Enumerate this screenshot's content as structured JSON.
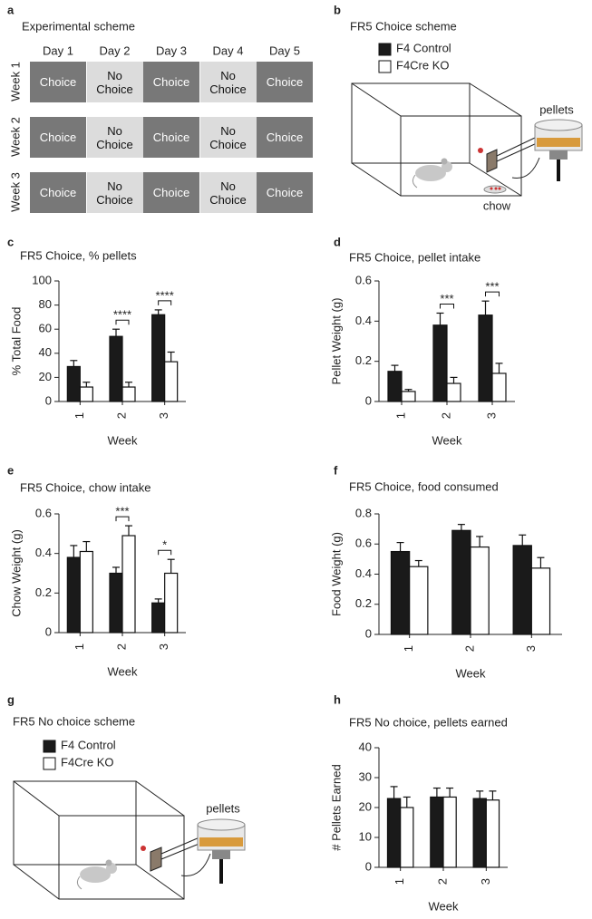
{
  "scheme": {
    "panel": "a",
    "title": "Experimental scheme",
    "days": [
      "Day 1",
      "Day 2",
      "Day 3",
      "Day 4",
      "Day 5"
    ],
    "weeks": [
      "Week 1",
      "Week 2",
      "Week 3"
    ],
    "rows": [
      [
        "Choice",
        "No Choice",
        "Choice",
        "No Choice",
        "Choice"
      ],
      [
        "Choice",
        "No Choice",
        "Choice",
        "No Choice",
        "Choice"
      ],
      [
        "Choice",
        "No Choice",
        "Choice",
        "No Choice",
        "Choice"
      ]
    ],
    "cell_colors": [
      "#787878",
      "#dcdcdc",
      "#787878",
      "#dcdcdc",
      "#787878"
    ],
    "text_colors": [
      "#ffffff",
      "#111111",
      "#ffffff",
      "#111111",
      "#ffffff"
    ]
  },
  "diagram_b": {
    "panel": "b",
    "title": "FR5 Choice scheme",
    "legend": [
      {
        "name": "F4 Control",
        "color": "#1a1a1a"
      },
      {
        "name": "F4Cre KO",
        "color": "#ffffff"
      }
    ],
    "pellets_label": "pellets",
    "chow_label": "chow"
  },
  "diagram_g": {
    "panel": "g",
    "title": "FR5 No choice scheme",
    "legend": [
      {
        "name": "F4 Control",
        "color": "#1a1a1a"
      },
      {
        "name": "F4Cre KO",
        "color": "#ffffff"
      }
    ],
    "pellets_label": "pellets"
  },
  "chart_data": [
    {
      "type": "bar",
      "panel": "c",
      "title": "FR5 Choice, % pellets",
      "y_label": "% Total Food",
      "x_label": "Week",
      "categories": [
        "1",
        "2",
        "3"
      ],
      "series": [
        {
          "color": "#1a1a1a",
          "values": [
            29,
            54,
            72
          ],
          "errors": [
            5,
            6,
            4
          ]
        },
        {
          "color": "#ffffff",
          "values": [
            12,
            12,
            33
          ],
          "errors": [
            4,
            4,
            8
          ]
        }
      ],
      "ylim": [
        0,
        100
      ],
      "yticks": [
        0,
        20,
        40,
        60,
        80,
        100
      ],
      "annotations": [
        {
          "text": "****",
          "x": "2"
        },
        {
          "text": "****",
          "x": "3"
        }
      ]
    },
    {
      "type": "bar",
      "panel": "d",
      "title": "FR5 Choice, pellet intake",
      "y_label": "Pellet Weight (g)",
      "x_label": "Week",
      "categories": [
        "1",
        "2",
        "3"
      ],
      "series": [
        {
          "color": "#1a1a1a",
          "values": [
            0.15,
            0.38,
            0.43
          ],
          "errors": [
            0.03,
            0.06,
            0.07
          ]
        },
        {
          "color": "#ffffff",
          "values": [
            0.05,
            0.09,
            0.14
          ],
          "errors": [
            0.01,
            0.03,
            0.05
          ]
        }
      ],
      "ylim": [
        0,
        0.6
      ],
      "yticks": [
        0,
        0.2,
        0.4,
        0.6
      ],
      "annotations": [
        {
          "text": "***",
          "x": "2"
        },
        {
          "text": "***",
          "x": "3"
        }
      ]
    },
    {
      "type": "bar",
      "panel": "e",
      "title": "FR5 Choice, chow intake",
      "y_label": "Chow Weight (g)",
      "x_label": "Week",
      "categories": [
        "1",
        "2",
        "3"
      ],
      "series": [
        {
          "color": "#1a1a1a",
          "values": [
            0.38,
            0.3,
            0.15
          ],
          "errors": [
            0.06,
            0.03,
            0.02
          ]
        },
        {
          "color": "#ffffff",
          "values": [
            0.41,
            0.49,
            0.3
          ],
          "errors": [
            0.05,
            0.05,
            0.07
          ]
        }
      ],
      "ylim": [
        0,
        0.6
      ],
      "yticks": [
        0,
        0.2,
        0.4,
        0.6
      ],
      "annotations": [
        {
          "text": "***",
          "x": "2"
        },
        {
          "text": "*",
          "x": "3"
        }
      ]
    },
    {
      "type": "bar",
      "panel": "f",
      "title": "FR5 Choice, food consumed",
      "y_label": "Food Weight (g)",
      "x_label": "Week",
      "categories": [
        "1",
        "2",
        "3"
      ],
      "series": [
        {
          "color": "#1a1a1a",
          "values": [
            0.55,
            0.69,
            0.59
          ],
          "errors": [
            0.06,
            0.04,
            0.07
          ]
        },
        {
          "color": "#ffffff",
          "values": [
            0.45,
            0.58,
            0.44
          ],
          "errors": [
            0.04,
            0.07,
            0.07
          ]
        }
      ],
      "ylim": [
        0,
        0.8
      ],
      "yticks": [
        0,
        0.2,
        0.4,
        0.6,
        0.8
      ]
    },
    {
      "type": "bar",
      "panel": "h",
      "title": "FR5 No choice, pellets earned",
      "y_label": "# Pellets Earned",
      "x_label": "Week",
      "categories": [
        "1",
        "2",
        "3"
      ],
      "series": [
        {
          "color": "#1a1a1a",
          "values": [
            23,
            23.5,
            23
          ],
          "errors": [
            4,
            3,
            2.5
          ]
        },
        {
          "color": "#ffffff",
          "values": [
            20,
            23.5,
            22.5
          ],
          "errors": [
            3.5,
            3,
            3
          ]
        }
      ],
      "ylim": [
        0,
        40
      ],
      "yticks": [
        0,
        10,
        20,
        30,
        40
      ]
    }
  ]
}
